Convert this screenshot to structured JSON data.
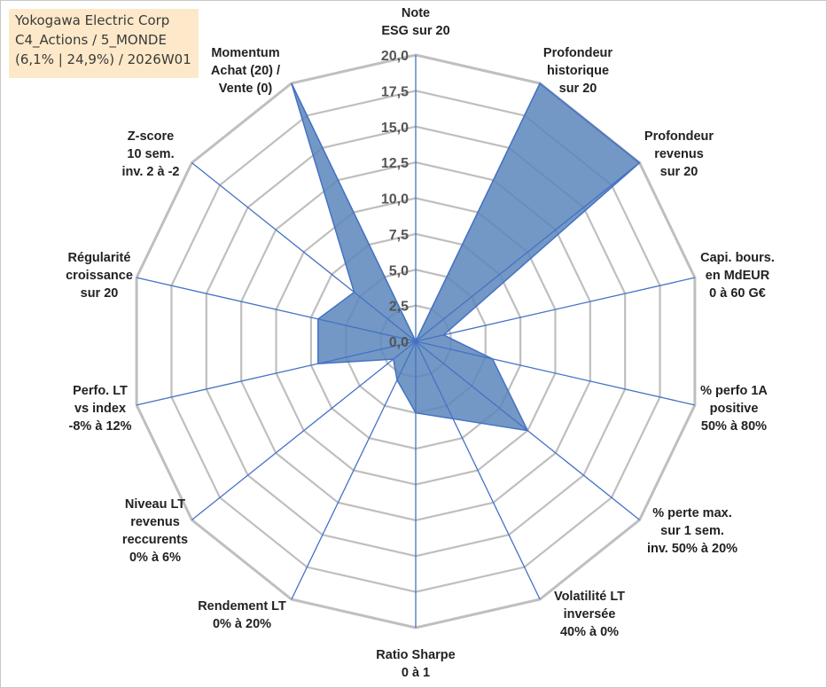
{
  "title_box": {
    "line1": "Yokogawa Electric Corp",
    "line2": "C4_Actions / 5_MONDE",
    "line3": "(6,1% | 24,9%) / 2026W01"
  },
  "colors": {
    "fill": "#5b86bb",
    "stroke": "#4472c4",
    "grid": "#bfbfbf",
    "spoke": "#4472c4"
  },
  "chart_data": {
    "type": "radar",
    "range": [
      0,
      20
    ],
    "ticks": [
      "0,0",
      "2,5",
      "5,0",
      "7,5",
      "10,0",
      "12,5",
      "15,0",
      "17,5",
      "20,0"
    ],
    "tick_values": [
      0,
      2.5,
      5,
      7.5,
      10,
      12.5,
      15,
      17.5,
      20
    ],
    "axes": [
      {
        "label": [
          "Note",
          "ESG sur 20"
        ],
        "value": 0
      },
      {
        "label": [
          "Profondeur",
          "historique",
          "sur 20"
        ],
        "value": 20
      },
      {
        "label": [
          "Profondeur",
          "revenus",
          "sur 20"
        ],
        "value": 20
      },
      {
        "label": [
          "Capi. bours.",
          "en MdEUR",
          "0 à 60 G€"
        ],
        "value": 2.0
      },
      {
        "label": [
          "% perfo 1A",
          "positive",
          "50% à 80%"
        ],
        "value": 5.5
      },
      {
        "label": [
          "% perte max.",
          "sur 1 sem.",
          "inv. 50% à 20%"
        ],
        "value": 10.0
      },
      {
        "label": [
          "Volatilité LT",
          "inversée",
          "40% à 0%"
        ],
        "value": 6.0
      },
      {
        "label": [
          "Ratio Sharpe",
          "0 à 1"
        ],
        "value": 5.0
      },
      {
        "label": [
          "Rendement LT",
          "0% à 20%"
        ],
        "value": 3.0
      },
      {
        "label": [
          "Niveau LT",
          "revenus",
          "reccurents",
          "0% à 6%"
        ],
        "value": 2.0
      },
      {
        "label": [
          "Perfo. LT",
          "vs index",
          "-8% à 12%"
        ],
        "value": 7.0
      },
      {
        "label": [
          "Régularité",
          "croissance",
          "sur 20"
        ],
        "value": 7.0
      },
      {
        "label": [
          "Z-score",
          "10 sem.",
          "inv. 2 à -2"
        ],
        "value": 5.5
      },
      {
        "label": [
          "Momentum",
          "Achat (20) /",
          "Vente (0)"
        ],
        "value": 20
      }
    ]
  }
}
